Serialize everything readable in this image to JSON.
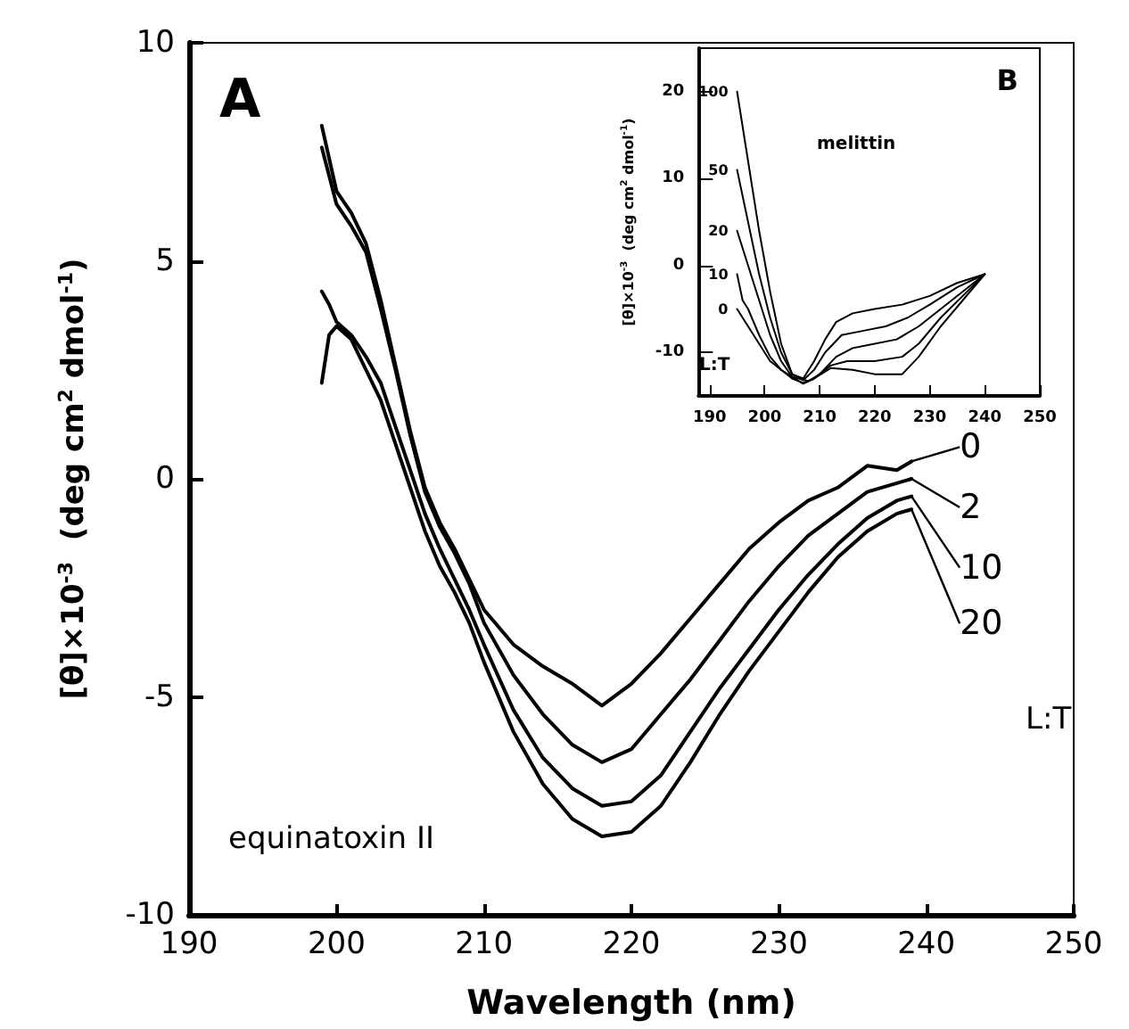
{
  "chart_data": [
    {
      "type": "line",
      "title": "A",
      "xlabel": "Wavelength (nm)",
      "ylabel": "[θ]×10$^{-3}$  (deg cm$^{2}$ dmol$^{-1}$)",
      "xlim": [
        190,
        250
      ],
      "ylim": [
        -10,
        10
      ],
      "xticks": [
        190,
        200,
        210,
        220,
        230,
        240,
        250
      ],
      "yticks": [
        -10,
        -5,
        0,
        5,
        10
      ],
      "grid": false,
      "legend": "right",
      "marker": "none",
      "line_style": "solid",
      "annotations": [
        "equinatoxin II",
        "L:T"
      ],
      "series": [
        {
          "name": "0",
          "color": "#000000",
          "x": [
            199,
            200,
            201,
            202,
            203,
            204,
            205,
            206,
            207,
            208,
            209,
            210,
            212,
            214,
            216,
            218,
            220,
            222,
            224,
            226,
            228,
            230,
            232,
            234,
            236,
            238,
            239
          ],
          "values": [
            8.1,
            6.6,
            6.1,
            5.4,
            4.1,
            2.6,
            1.1,
            -0.2,
            -1.0,
            -1.6,
            -2.3,
            -3.0,
            -3.8,
            -4.3,
            -4.7,
            -5.2,
            -4.7,
            -4.0,
            -3.2,
            -2.4,
            -1.6,
            -1.0,
            -0.5,
            -0.2,
            0.3,
            0.2,
            0.4
          ]
        },
        {
          "name": "2",
          "color": "#000000",
          "x": [
            199,
            200,
            201,
            202,
            203,
            204,
            205,
            206,
            207,
            208,
            209,
            210,
            212,
            214,
            216,
            218,
            220,
            222,
            224,
            226,
            228,
            230,
            232,
            234,
            236,
            238,
            239
          ],
          "values": [
            7.6,
            6.3,
            5.8,
            5.2,
            3.9,
            2.5,
            1.0,
            -0.3,
            -1.1,
            -1.7,
            -2.4,
            -3.3,
            -4.5,
            -5.4,
            -6.1,
            -6.5,
            -6.2,
            -5.4,
            -4.6,
            -3.7,
            -2.8,
            -2.0,
            -1.3,
            -0.8,
            -0.3,
            -0.1,
            0.0
          ]
        },
        {
          "name": "10",
          "color": "#000000",
          "x": [
            199,
            199.5,
            200,
            201,
            202,
            203,
            204,
            205,
            206,
            207,
            208,
            209,
            210,
            212,
            214,
            216,
            218,
            220,
            222,
            224,
            226,
            228,
            230,
            232,
            234,
            236,
            238,
            239
          ],
          "values": [
            4.3,
            4.0,
            3.6,
            3.3,
            2.8,
            2.2,
            1.2,
            0.2,
            -0.8,
            -1.6,
            -2.3,
            -3.0,
            -3.8,
            -5.3,
            -6.4,
            -7.1,
            -7.5,
            -7.4,
            -6.8,
            -5.8,
            -4.8,
            -3.9,
            -3.0,
            -2.2,
            -1.5,
            -0.9,
            -0.5,
            -0.4
          ]
        },
        {
          "name": "20",
          "color": "#000000",
          "x": [
            199,
            199.5,
            200,
            201,
            202,
            203,
            204,
            205,
            206,
            207,
            208,
            209,
            210,
            212,
            214,
            216,
            218,
            220,
            222,
            224,
            226,
            228,
            230,
            232,
            234,
            236,
            238,
            239
          ],
          "values": [
            2.2,
            3.3,
            3.5,
            3.2,
            2.5,
            1.8,
            0.8,
            -0.2,
            -1.2,
            -2.0,
            -2.6,
            -3.3,
            -4.2,
            -5.8,
            -7.0,
            -7.8,
            -8.2,
            -8.1,
            -7.5,
            -6.5,
            -5.4,
            -4.4,
            -3.5,
            -2.6,
            -1.8,
            -1.2,
            -0.8,
            -0.7
          ]
        }
      ]
    },
    {
      "type": "line",
      "title": "B",
      "ylabel": "[θ]×10$^{-3}$  (deg cm$^{2}$ dmol$^{-1}$)",
      "xlim": [
        188,
        250
      ],
      "ylim": [
        -15,
        25
      ],
      "xticks": [
        190,
        200,
        210,
        220,
        230,
        240,
        250
      ],
      "yticks": [
        -10,
        0,
        10,
        20
      ],
      "grid": false,
      "marker": "none",
      "line_style": "solid",
      "annotations": [
        "melittin",
        "L:T"
      ],
      "series": [
        {
          "name": "100",
          "color": "#000000",
          "x": [
            195,
            197,
            199,
            201,
            203,
            205,
            207,
            209,
            211,
            213,
            216,
            220,
            225,
            230,
            235,
            240
          ],
          "values": [
            20,
            12,
            4,
            -3,
            -9,
            -12.5,
            -13,
            -11,
            -8.5,
            -6.5,
            -5.5,
            -5,
            -4.5,
            -3.5,
            -2,
            -1
          ]
        },
        {
          "name": "50",
          "color": "#000000",
          "x": [
            195,
            197,
            199,
            201,
            203,
            205,
            207,
            209,
            211,
            214,
            218,
            222,
            226,
            230,
            235,
            240
          ],
          "values": [
            11,
            5,
            -1,
            -6,
            -10,
            -12.5,
            -13.2,
            -12,
            -10,
            -8,
            -7.5,
            -7,
            -6,
            -4.5,
            -2.5,
            -1
          ]
        },
        {
          "name": "20",
          "color": "#000000",
          "x": [
            195,
            197,
            199,
            201,
            203,
            205,
            208,
            210,
            213,
            216,
            220,
            224,
            228,
            232,
            236,
            240
          ],
          "values": [
            4,
            0,
            -4,
            -8,
            -11,
            -12.8,
            -13.3,
            -12.5,
            -10.5,
            -9.5,
            -9,
            -8.5,
            -7,
            -5,
            -3,
            -1
          ]
        },
        {
          "name": "10",
          "color": "#000000",
          "x": [
            195,
            196,
            197,
            199,
            201,
            203,
            205,
            207,
            209,
            212,
            215,
            220,
            225,
            228,
            232,
            236,
            240
          ],
          "values": [
            -1,
            -4,
            -5,
            -8,
            -10.5,
            -12,
            -13,
            -13.5,
            -13,
            -11.5,
            -11,
            -11,
            -10.5,
            -9,
            -6,
            -3.5,
            -1
          ]
        },
        {
          "name": "0",
          "color": "#000000",
          "x": [
            195,
            197,
            199,
            201,
            203,
            205,
            207,
            209,
            212,
            216,
            220,
            225,
            228,
            232,
            236,
            240
          ],
          "values": [
            -5,
            -7,
            -9,
            -11,
            -12,
            -12.8,
            -13.6,
            -13,
            -11.8,
            -12,
            -12.5,
            -12.5,
            -10.5,
            -7,
            -4,
            -1
          ]
        }
      ]
    }
  ]
}
